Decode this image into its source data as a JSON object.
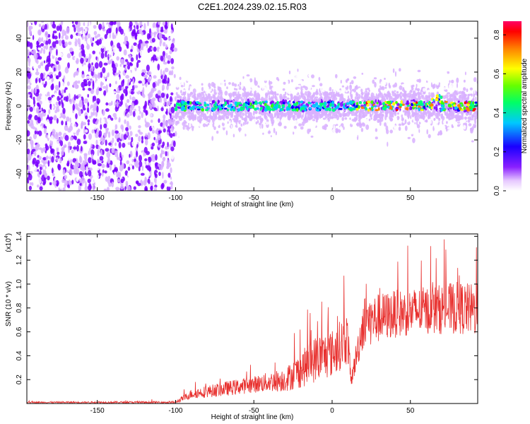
{
  "title": "C2E1.2024.239.02.15.R03",
  "chart_data": [
    {
      "type": "heatmap",
      "xlabel": "Height of straight line (km)",
      "ylabel": "Frequency (Hz)",
      "xlim": [
        -195,
        93
      ],
      "ylim": [
        -50,
        50
      ],
      "x_ticks": [
        -150,
        -100,
        -50,
        0,
        50
      ],
      "y_ticks": [
        -40,
        -20,
        0,
        20,
        40
      ],
      "colorbar": {
        "label": "Normalized spectral amplitude",
        "range": [
          0,
          0.87
        ],
        "ticks": [
          0.0,
          0.2,
          0.4,
          0.6,
          0.8
        ],
        "colors": [
          "#ffffff",
          "#d8b0ff",
          "#7a00ff",
          "#0000ff",
          "#00c8ff",
          "#00ff80",
          "#40ff00",
          "#ffff00",
          "#ff8000",
          "#ff0000"
        ]
      },
      "regions": [
        {
          "x": [
            -195,
            -100
          ],
          "freq_range": [
            -50,
            50
          ],
          "typical_amplitude": 0.15
        },
        {
          "x": [
            -100,
            93
          ],
          "freq_range": [
            -15,
            15
          ],
          "typical_amplitude": 0.1
        },
        {
          "x": [
            -100,
            93
          ],
          "centerline_freq": 0,
          "peak_amplitude": 0.85
        }
      ]
    },
    {
      "type": "line",
      "xlabel": "Height of straight line (km)",
      "ylabel": "SNR (10 * v/v)",
      "y_multiplier": "(x10",
      "y_multiplier_exp": "4",
      "y_multiplier_close": ")",
      "xlim": [
        -195,
        93
      ],
      "ylim": [
        0,
        1.42
      ],
      "x_ticks": [
        -150,
        -100,
        -50,
        0,
        50
      ],
      "y_ticks": [
        0.2,
        0.4,
        0.6,
        0.8,
        1.0,
        1.2,
        1.4
      ],
      "y_tick_labels": [
        "0.2",
        "0.4",
        "0.6",
        "0.8",
        "1.0",
        "1.2",
        "1.4"
      ],
      "color": "#e8302e",
      "series_envelope": {
        "x": [
          -195,
          -100,
          -90,
          -70,
          -50,
          -30,
          -20,
          -10,
          0,
          10,
          12,
          20,
          40,
          60,
          80,
          93
        ],
        "mean": [
          0.01,
          0.01,
          0.08,
          0.12,
          0.16,
          0.2,
          0.28,
          0.38,
          0.42,
          0.55,
          0.18,
          0.68,
          0.75,
          0.78,
          0.8,
          0.78
        ],
        "spread": [
          0.005,
          0.01,
          0.04,
          0.06,
          0.07,
          0.1,
          0.15,
          0.2,
          0.2,
          0.22,
          0.05,
          0.22,
          0.2,
          0.2,
          0.22,
          0.22
        ]
      }
    }
  ]
}
